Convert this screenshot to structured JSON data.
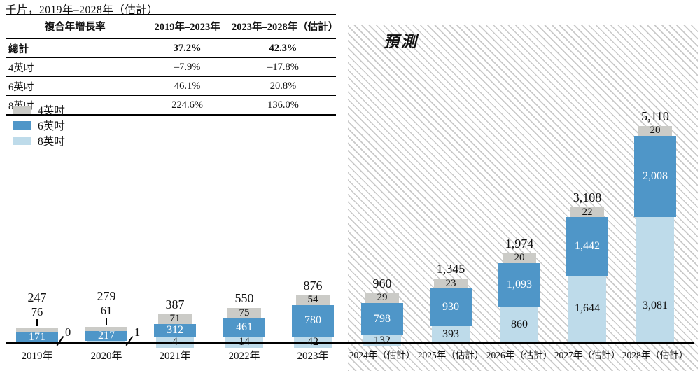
{
  "page_title": "千片，2019年–2028年（估計）",
  "cagr_table": {
    "header": {
      "col1": "複合年增長率",
      "col2": "2019年–2023年",
      "col3": "2023年–2028年（估計）"
    },
    "rows": [
      {
        "label": "總計",
        "v1": "37.2%",
        "v2": "42.3%"
      },
      {
        "label": "4英吋",
        "v1": "–7.9%",
        "v2": "–17.8%"
      },
      {
        "label": "6英吋",
        "v1": "46.1%",
        "v2": "20.8%"
      },
      {
        "label": "8英吋",
        "v1": "224.6%",
        "v2": "136.0%"
      }
    ]
  },
  "legend": [
    {
      "label": "4英吋",
      "color": "#cbcbc7"
    },
    {
      "label": "6英吋",
      "color": "#4f96c8"
    },
    {
      "label": "8英吋",
      "color": "#bedbea"
    }
  ],
  "forecast_label": "預測",
  "chart_data": {
    "type": "bar",
    "stacked": true,
    "unit": "千片",
    "title": "千片，2019年–2028年（估計）",
    "categories": [
      "2019年",
      "2020年",
      "2021年",
      "2022年",
      "2023年",
      "2024年（估計）",
      "2025年（估計）",
      "2026年（估計）",
      "2027年（估計）",
      "2028年（估計）"
    ],
    "series": [
      {
        "name": "4英吋",
        "values": [
          76,
          61,
          71,
          75,
          54,
          29,
          23,
          20,
          22,
          20
        ]
      },
      {
        "name": "6英吋",
        "values": [
          171,
          217,
          312,
          461,
          780,
          798,
          930,
          1093,
          1442,
          2008
        ]
      },
      {
        "name": "8英吋",
        "values": [
          0,
          1,
          4,
          14,
          42,
          132,
          393,
          860,
          1644,
          3081
        ]
      }
    ],
    "totals": [
      247,
      279,
      387,
      550,
      876,
      960,
      1345,
      1974,
      3108,
      5110
    ],
    "forecast_from_index": 5,
    "legend_position": "top-left",
    "grid": false,
    "cagr": {
      "total": {
        "2019-2023": "37.2%",
        "2023-2028e": "42.3%"
      },
      "4inch": {
        "2019-2023": "–7.9%",
        "2023-2028e": "–17.8%"
      },
      "6inch": {
        "2019-2023": "46.1%",
        "2023-2028e": "20.8%"
      },
      "8inch": {
        "2019-2023": "224.6%",
        "2023-2028e": "136.0%"
      }
    }
  }
}
